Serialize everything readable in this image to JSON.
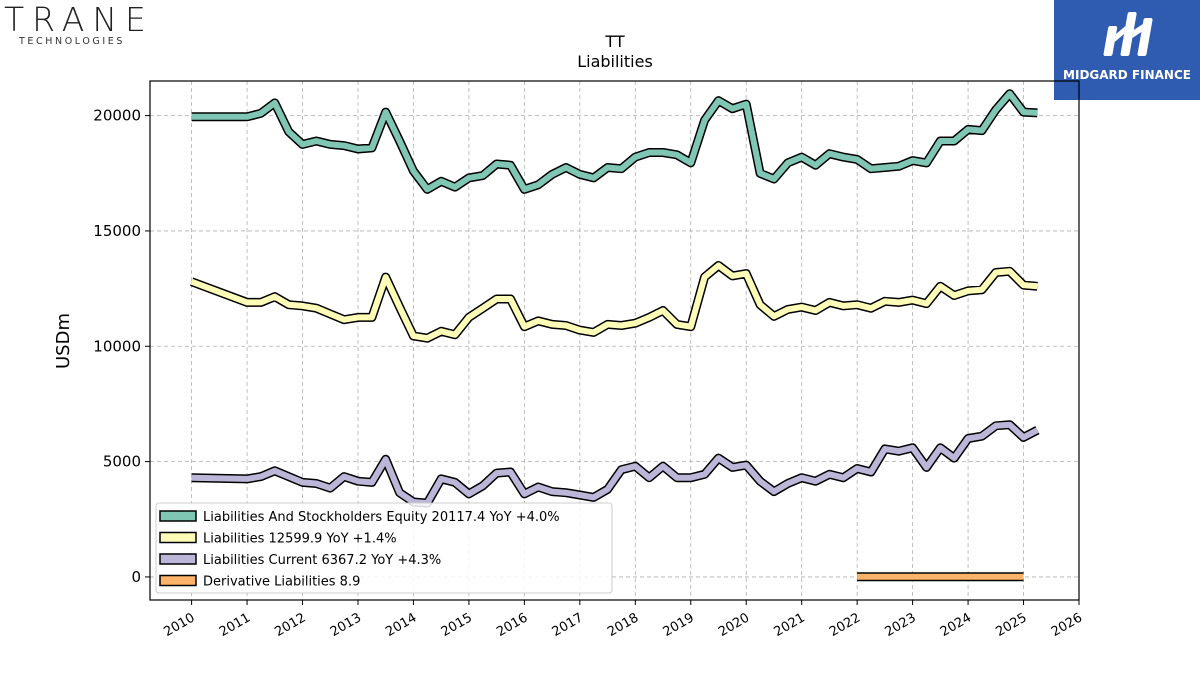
{
  "logos": {
    "left_main": "TRANE",
    "left_sub": "TECHNOLOGIES",
    "right_brand": "MIDGARD FINANCE"
  },
  "chart_data": {
    "type": "line",
    "title": "TT",
    "subtitle": "Liabilities",
    "ylabel": "USDm",
    "xlabel": "",
    "xlim": [
      2009.25,
      2026.0
    ],
    "ylim": [
      -1000,
      21500
    ],
    "x_ticks": [
      "2010",
      "2011",
      "2012",
      "2013",
      "2014",
      "2015",
      "2016",
      "2017",
      "2018",
      "2019",
      "2020",
      "2021",
      "2022",
      "2023",
      "2024",
      "2025",
      "2026"
    ],
    "y_ticks": [
      "0",
      "5000",
      "10000",
      "15000",
      "20000"
    ],
    "grid": true,
    "legend_placement": "lower-left",
    "series": [
      {
        "name": "Liabilities And Stockholders Equity",
        "legend_label": "Liabilities And Stockholders Equity  20117.4 YoY +4.0%",
        "color": "#7fc6b5",
        "x": [
          2010.0,
          2011.0,
          2011.25,
          2011.5,
          2011.75,
          2012.0,
          2012.25,
          2012.5,
          2012.75,
          2013.0,
          2013.25,
          2013.5,
          2013.75,
          2014.0,
          2014.25,
          2014.5,
          2014.75,
          2015.0,
          2015.25,
          2015.5,
          2015.75,
          2016.0,
          2016.25,
          2016.5,
          2016.75,
          2017.0,
          2017.25,
          2017.5,
          2017.75,
          2018.0,
          2018.25,
          2018.5,
          2018.75,
          2019.0,
          2019.25,
          2019.5,
          2019.75,
          2020.0,
          2020.25,
          2020.5,
          2020.75,
          2021.0,
          2021.25,
          2021.5,
          2021.75,
          2022.0,
          2022.25,
          2022.5,
          2022.75,
          2023.0,
          2023.25,
          2023.5,
          2023.75,
          2024.0,
          2024.25,
          2024.5,
          2024.75,
          2025.0,
          2025.25
        ],
        "values": [
          19950,
          19950,
          20100,
          20550,
          19300,
          18750,
          18900,
          18750,
          18700,
          18550,
          18600,
          20150,
          18900,
          17600,
          16800,
          17150,
          16900,
          17300,
          17400,
          17900,
          17850,
          16800,
          17000,
          17450,
          17750,
          17450,
          17300,
          17750,
          17700,
          18200,
          18400,
          18400,
          18300,
          17950,
          19800,
          20650,
          20300,
          20500,
          17500,
          17250,
          17950,
          18200,
          17850,
          18350,
          18200,
          18100,
          17700,
          17750,
          17800,
          18050,
          17950,
          18900,
          18900,
          19400,
          19350,
          20250,
          20950,
          20150,
          20117
        ]
      },
      {
        "name": "Liabilities",
        "legend_label": "Liabilities  12599.9 YoY +1.4%",
        "color": "#fdfdb8",
        "x": [
          2010.0,
          2011.0,
          2011.25,
          2011.5,
          2011.75,
          2012.0,
          2012.25,
          2012.5,
          2012.75,
          2013.0,
          2013.25,
          2013.5,
          2013.75,
          2014.0,
          2014.25,
          2014.5,
          2014.75,
          2015.0,
          2015.25,
          2015.5,
          2015.75,
          2016.0,
          2016.25,
          2016.5,
          2016.75,
          2017.0,
          2017.25,
          2017.5,
          2017.75,
          2018.0,
          2018.25,
          2018.5,
          2018.75,
          2019.0,
          2019.25,
          2019.5,
          2019.75,
          2020.0,
          2020.25,
          2020.5,
          2020.75,
          2021.0,
          2021.25,
          2021.5,
          2021.75,
          2022.0,
          2022.25,
          2022.5,
          2022.75,
          2023.0,
          2023.25,
          2023.5,
          2023.75,
          2024.0,
          2024.25,
          2024.5,
          2024.75,
          2025.0,
          2025.25
        ],
        "values": [
          12800,
          11900,
          11900,
          12150,
          11800,
          11750,
          11650,
          11400,
          11150,
          11250,
          11250,
          13000,
          11700,
          10450,
          10350,
          10650,
          10500,
          11250,
          11650,
          12050,
          12050,
          10850,
          11100,
          10950,
          10900,
          10700,
          10600,
          10950,
          10900,
          11000,
          11250,
          11550,
          10950,
          10850,
          13000,
          13500,
          13050,
          13150,
          11800,
          11300,
          11600,
          11700,
          11550,
          11900,
          11750,
          11800,
          11650,
          11950,
          11900,
          12000,
          11850,
          12600,
          12200,
          12400,
          12450,
          13200,
          13250,
          12650,
          12600
        ]
      },
      {
        "name": "Liabilities Current",
        "legend_label": "Liabilities Current  6367.2 YoY +4.3%",
        "color": "#bcb6d8",
        "x": [
          2010.0,
          2011.0,
          2011.25,
          2011.5,
          2011.75,
          2012.0,
          2012.25,
          2012.5,
          2012.75,
          2013.0,
          2013.25,
          2013.5,
          2013.75,
          2014.0,
          2014.25,
          2014.5,
          2014.75,
          2015.0,
          2015.25,
          2015.5,
          2015.75,
          2016.0,
          2016.25,
          2016.5,
          2016.75,
          2017.0,
          2017.25,
          2017.5,
          2017.75,
          2018.0,
          2018.25,
          2018.5,
          2018.75,
          2019.0,
          2019.25,
          2019.5,
          2019.75,
          2020.0,
          2020.25,
          2020.5,
          2020.75,
          2021.0,
          2021.25,
          2021.5,
          2021.75,
          2022.0,
          2022.25,
          2022.5,
          2022.75,
          2023.0,
          2023.25,
          2023.5,
          2023.75,
          2024.0,
          2024.25,
          2024.5,
          2024.75,
          2025.0,
          2025.25
        ],
        "values": [
          4300,
          4250,
          4350,
          4600,
          4350,
          4100,
          4050,
          3850,
          4350,
          4150,
          4100,
          5100,
          3650,
          3250,
          3200,
          4250,
          4100,
          3600,
          3950,
          4500,
          4550,
          3600,
          3900,
          3700,
          3650,
          3550,
          3450,
          3800,
          4650,
          4800,
          4300,
          4800,
          4300,
          4300,
          4450,
          5150,
          4750,
          4850,
          4150,
          3700,
          4050,
          4300,
          4150,
          4450,
          4300,
          4700,
          4550,
          5550,
          5450,
          5600,
          4750,
          5600,
          5150,
          6000,
          6100,
          6550,
          6600,
          6050,
          6367
        ]
      },
      {
        "name": "Derivative Liabilities",
        "legend_label": "Derivative Liabilities  8.9",
        "color": "#fdb46a",
        "x": [
          2022.0,
          2025.0
        ],
        "values": [
          8.9,
          8.9
        ]
      }
    ]
  }
}
